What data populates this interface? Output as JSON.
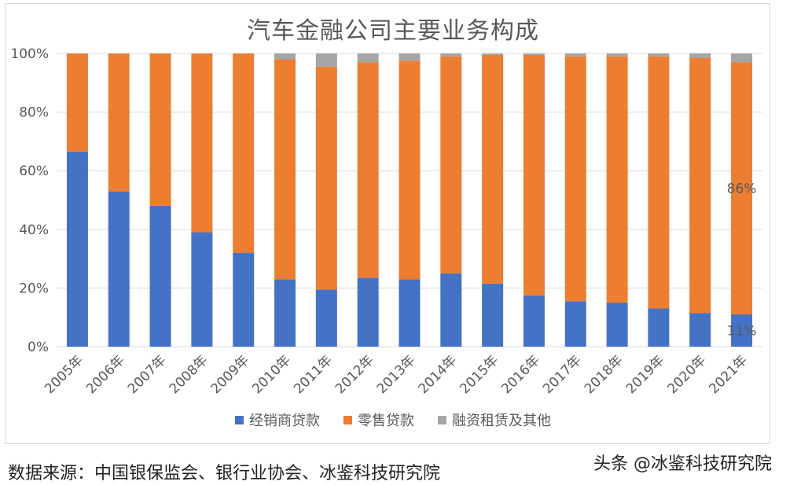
{
  "chart_data": {
    "type": "bar",
    "stacked": true,
    "title": "汽车金融公司主要业务构成",
    "categories": [
      "2005年",
      "2006年",
      "2007年",
      "2008年",
      "2009年",
      "2010年",
      "2011年",
      "2012年",
      "2013年",
      "2014年",
      "2015年",
      "2016年",
      "2017年",
      "2018年",
      "2019年",
      "2020年",
      "2021年"
    ],
    "series": [
      {
        "name": "经销商贷款",
        "color": "#4472C4",
        "values": [
          66.5,
          53,
          48,
          39,
          32,
          23,
          19.5,
          23.5,
          23,
          25,
          21.5,
          17.5,
          15.5,
          15,
          13,
          11.5,
          11
        ]
      },
      {
        "name": "零售贷款",
        "color": "#ED7D31",
        "values": [
          33.5,
          47,
          52,
          61,
          68,
          75,
          76,
          73.5,
          74.5,
          74,
          78,
          82,
          83.5,
          84,
          86,
          87,
          86
        ]
      },
      {
        "name": "融资租赁及其他",
        "color": "#A5A5A5",
        "values": [
          0,
          0,
          0,
          0,
          0,
          2,
          4.5,
          3,
          2.5,
          1,
          0.5,
          0.5,
          1,
          1,
          1,
          1.5,
          3
        ]
      }
    ],
    "ylim": [
      0,
      100
    ],
    "yticks": [
      "0%",
      "20%",
      "40%",
      "60%",
      "80%",
      "100%"
    ],
    "annotations": [
      {
        "category": "2021年",
        "series": "零售贷款",
        "text": "86%"
      },
      {
        "category": "2021年",
        "series": "经销商贷款",
        "text": "11%"
      }
    ],
    "grid": true,
    "legend": "bottom"
  },
  "source_text": "数据来源：中国银保监会、银行业协会、冰鉴科技研究院",
  "watermark_text": "头条 @冰鉴科技研究院"
}
